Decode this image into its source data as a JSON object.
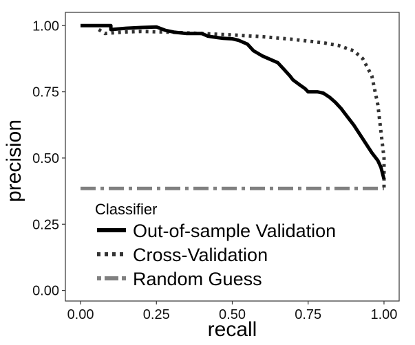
{
  "chart_data": {
    "type": "line",
    "xlabel": "recall",
    "ylabel": "precision",
    "xlim": [
      -0.05,
      1.05
    ],
    "ylim": [
      -0.04,
      1.05
    ],
    "x_ticks": [
      0.0,
      0.25,
      0.5,
      0.75,
      1.0
    ],
    "x_tick_labels": [
      "0.00",
      "0.25",
      "0.50",
      "0.75",
      "1.00"
    ],
    "y_ticks": [
      0.0,
      0.25,
      0.5,
      0.75,
      1.0
    ],
    "y_tick_labels": [
      "0.00",
      "0.25",
      "0.50",
      "0.75",
      "1.00"
    ],
    "grid": false,
    "legend": {
      "title": "Classifier",
      "placement": "bottom-left inside plot"
    },
    "series": [
      {
        "name": "Out-of-sample Validation",
        "color": "#000000",
        "style": "solid",
        "x": [
          0.0,
          0.04,
          0.08,
          0.1,
          0.1,
          0.15,
          0.2,
          0.25,
          0.28,
          0.31,
          0.35,
          0.4,
          0.42,
          0.45,
          0.47,
          0.5,
          0.52,
          0.55,
          0.57,
          0.6,
          0.62,
          0.65,
          0.67,
          0.69,
          0.7,
          0.72,
          0.74,
          0.75,
          0.78,
          0.8,
          0.82,
          0.84,
          0.86,
          0.88,
          0.9,
          0.92,
          0.94,
          0.96,
          0.98,
          0.99,
          1.0
        ],
        "y": [
          1.0,
          1.0,
          1.0,
          1.0,
          0.985,
          0.99,
          0.993,
          0.995,
          0.982,
          0.975,
          0.97,
          0.97,
          0.96,
          0.955,
          0.952,
          0.95,
          0.945,
          0.93,
          0.905,
          0.885,
          0.875,
          0.86,
          0.835,
          0.81,
          0.795,
          0.778,
          0.762,
          0.75,
          0.75,
          0.745,
          0.73,
          0.71,
          0.685,
          0.655,
          0.625,
          0.59,
          0.555,
          0.52,
          0.49,
          0.465,
          0.42
        ]
      },
      {
        "name": "Cross-Validation",
        "color": "#333333",
        "style": "dotted",
        "x": [
          0.06,
          0.08,
          0.1,
          0.15,
          0.2,
          0.3,
          0.4,
          0.5,
          0.6,
          0.7,
          0.8,
          0.85,
          0.9,
          0.93,
          0.96,
          0.98,
          0.99,
          1.0,
          1.0
        ],
        "y": [
          0.985,
          0.97,
          0.972,
          0.976,
          0.978,
          0.975,
          0.97,
          0.965,
          0.958,
          0.948,
          0.935,
          0.925,
          0.905,
          0.875,
          0.81,
          0.7,
          0.6,
          0.5,
          0.385
        ]
      },
      {
        "name": "Random Guess",
        "color": "#808080",
        "style": "dashdot",
        "x": [
          0.0,
          1.0
        ],
        "y": [
          0.385,
          0.385
        ]
      }
    ]
  }
}
